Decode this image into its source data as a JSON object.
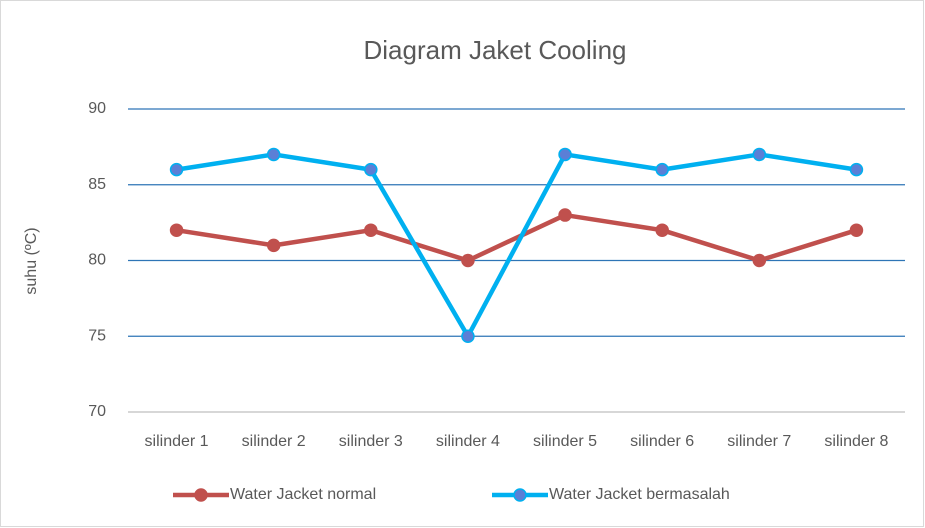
{
  "chart_data": {
    "type": "line",
    "title": "Diagram Jaket Cooling",
    "y_label": "suhu (ºC)",
    "categories": [
      "silinder 1",
      "silinder 2",
      "silinder 3",
      "silinder 4",
      "silinder 5",
      "silinder 6",
      "silinder 7",
      "silinder 8"
    ],
    "series": [
      {
        "name": "Water Jacket normal",
        "color": "#c0504d",
        "marker_color": "#c0504d",
        "values": [
          82,
          81,
          82,
          80,
          83,
          82,
          80,
          82
        ]
      },
      {
        "name": "Water Jacket bermasalah",
        "color": "#00b0f0",
        "marker_color": "#5b7fd6",
        "values": [
          86,
          87,
          86,
          75,
          87,
          86,
          87,
          86
        ]
      }
    ],
    "ylim": [
      70,
      90
    ],
    "yticks": [
      70,
      75,
      80,
      85,
      90
    ],
    "grid": true,
    "grid_color": "#2e75b6",
    "legend": "bottom"
  }
}
